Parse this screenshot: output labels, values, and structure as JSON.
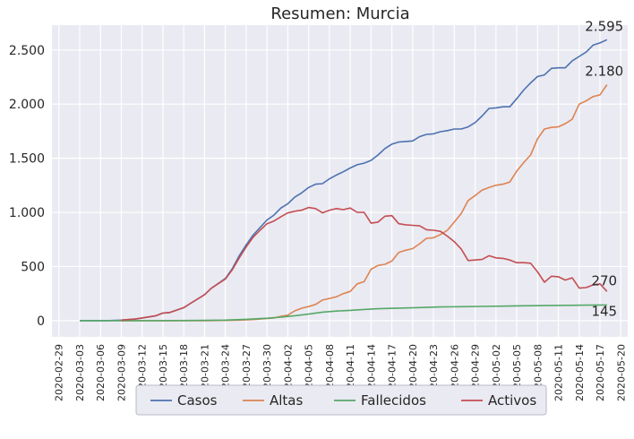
{
  "chart_data": {
    "type": "line",
    "title": "Resumen: Murcia",
    "xlabel": "",
    "ylabel": "",
    "xlim": [
      "2020-02-28",
      "2020-05-21"
    ],
    "ylim": [
      -150,
      2730
    ],
    "grid": true,
    "background": "#eaeaf2",
    "legend_position": "bottom-center",
    "y_ticks": [
      {
        "value": 0,
        "label": "0"
      },
      {
        "value": 500,
        "label": "500"
      },
      {
        "value": 1000,
        "label": "1.000"
      },
      {
        "value": 1500,
        "label": "1.500"
      },
      {
        "value": 2000,
        "label": "2.000"
      },
      {
        "value": 2500,
        "label": "2.500"
      }
    ],
    "x_ticks": [
      "2020-02-29",
      "2020-03-03",
      "2020-03-06",
      "2020-03-09",
      "2020-03-12",
      "2020-03-15",
      "2020-03-18",
      "2020-03-21",
      "2020-03-24",
      "2020-03-27",
      "2020-03-30",
      "2020-04-02",
      "2020-04-05",
      "2020-04-08",
      "2020-04-11",
      "2020-04-14",
      "2020-04-17",
      "2020-04-20",
      "2020-04-23",
      "2020-04-26",
      "2020-04-29",
      "2020-05-02",
      "2020-05-05",
      "2020-05-08",
      "2020-05-11",
      "2020-05-14",
      "2020-05-17",
      "2020-05-20"
    ],
    "series": [
      {
        "name": "Casos",
        "color": "#4c72b0",
        "points": [
          [
            "2020-03-03",
            0
          ],
          [
            "2020-03-07",
            0
          ],
          [
            "2020-03-09",
            5
          ],
          [
            "2020-03-11",
            15
          ],
          [
            "2020-03-12",
            25
          ],
          [
            "2020-03-14",
            45
          ],
          [
            "2020-03-15",
            70
          ],
          [
            "2020-03-16",
            75
          ],
          [
            "2020-03-18",
            120
          ],
          [
            "2020-03-19",
            160
          ],
          [
            "2020-03-21",
            240
          ],
          [
            "2020-03-22",
            300
          ],
          [
            "2020-03-24",
            390
          ],
          [
            "2020-03-25",
            480
          ],
          [
            "2020-03-26",
            600
          ],
          [
            "2020-03-27",
            700
          ],
          [
            "2020-03-28",
            790
          ],
          [
            "2020-03-29",
            860
          ],
          [
            "2020-03-30",
            930
          ],
          [
            "2020-03-31",
            975
          ],
          [
            "2020-04-01",
            1040
          ],
          [
            "2020-04-02",
            1080
          ],
          [
            "2020-04-03",
            1140
          ],
          [
            "2020-04-04",
            1180
          ],
          [
            "2020-04-05",
            1230
          ],
          [
            "2020-04-06",
            1260
          ],
          [
            "2020-04-07",
            1265
          ],
          [
            "2020-04-08",
            1310
          ],
          [
            "2020-04-09",
            1345
          ],
          [
            "2020-04-10",
            1375
          ],
          [
            "2020-04-11",
            1410
          ],
          [
            "2020-04-12",
            1440
          ],
          [
            "2020-04-13",
            1455
          ],
          [
            "2020-04-14",
            1480
          ],
          [
            "2020-04-15",
            1530
          ],
          [
            "2020-04-16",
            1590
          ],
          [
            "2020-04-17",
            1630
          ],
          [
            "2020-04-18",
            1650
          ],
          [
            "2020-04-19",
            1655
          ],
          [
            "2020-04-20",
            1660
          ],
          [
            "2020-04-21",
            1700
          ],
          [
            "2020-04-22",
            1720
          ],
          [
            "2020-04-23",
            1725
          ],
          [
            "2020-04-24",
            1745
          ],
          [
            "2020-04-25",
            1755
          ],
          [
            "2020-04-26",
            1770
          ],
          [
            "2020-04-27",
            1770
          ],
          [
            "2020-04-28",
            1790
          ],
          [
            "2020-04-29",
            1830
          ],
          [
            "2020-04-30",
            1890
          ],
          [
            "2020-05-01",
            1960
          ],
          [
            "2020-05-02",
            1965
          ],
          [
            "2020-05-03",
            1975
          ],
          [
            "2020-05-04",
            1975
          ],
          [
            "2020-05-05",
            2050
          ],
          [
            "2020-05-06",
            2130
          ],
          [
            "2020-05-07",
            2195
          ],
          [
            "2020-05-08",
            2255
          ],
          [
            "2020-05-09",
            2270
          ],
          [
            "2020-05-10",
            2330
          ],
          [
            "2020-05-11",
            2335
          ],
          [
            "2020-05-12",
            2335
          ],
          [
            "2020-05-13",
            2400
          ],
          [
            "2020-05-14",
            2440
          ],
          [
            "2020-05-15",
            2480
          ],
          [
            "2020-05-16",
            2545
          ],
          [
            "2020-05-17",
            2565
          ],
          [
            "2020-05-18",
            2595
          ]
        ]
      },
      {
        "name": "Altas",
        "color": "#dd8452",
        "points": [
          [
            "2020-03-09",
            0
          ],
          [
            "2020-03-14",
            0
          ],
          [
            "2020-03-18",
            0
          ],
          [
            "2020-03-21",
            0
          ],
          [
            "2020-03-24",
            2
          ],
          [
            "2020-03-26",
            5
          ],
          [
            "2020-03-28",
            10
          ],
          [
            "2020-03-30",
            20
          ],
          [
            "2020-03-31",
            25
          ],
          [
            "2020-04-01",
            40
          ],
          [
            "2020-04-02",
            50
          ],
          [
            "2020-04-03",
            90
          ],
          [
            "2020-04-04",
            115
          ],
          [
            "2020-04-05",
            130
          ],
          [
            "2020-04-06",
            150
          ],
          [
            "2020-04-07",
            190
          ],
          [
            "2020-04-08",
            205
          ],
          [
            "2020-04-09",
            220
          ],
          [
            "2020-04-10",
            250
          ],
          [
            "2020-04-11",
            270
          ],
          [
            "2020-04-12",
            340
          ],
          [
            "2020-04-13",
            360
          ],
          [
            "2020-04-14",
            475
          ],
          [
            "2020-04-15",
            510
          ],
          [
            "2020-04-16",
            520
          ],
          [
            "2020-04-17",
            550
          ],
          [
            "2020-04-18",
            630
          ],
          [
            "2020-04-19",
            650
          ],
          [
            "2020-04-20",
            665
          ],
          [
            "2020-04-21",
            710
          ],
          [
            "2020-04-22",
            760
          ],
          [
            "2020-04-23",
            765
          ],
          [
            "2020-04-24",
            795
          ],
          [
            "2020-04-25",
            835
          ],
          [
            "2020-04-26",
            910
          ],
          [
            "2020-04-27",
            990
          ],
          [
            "2020-04-28",
            1110
          ],
          [
            "2020-04-29",
            1155
          ],
          [
            "2020-04-30",
            1205
          ],
          [
            "2020-05-01",
            1230
          ],
          [
            "2020-05-02",
            1250
          ],
          [
            "2020-05-03",
            1260
          ],
          [
            "2020-05-04",
            1280
          ],
          [
            "2020-05-05",
            1380
          ],
          [
            "2020-05-06",
            1460
          ],
          [
            "2020-05-07",
            1530
          ],
          [
            "2020-05-08",
            1680
          ],
          [
            "2020-05-09",
            1770
          ],
          [
            "2020-05-10",
            1785
          ],
          [
            "2020-05-11",
            1790
          ],
          [
            "2020-05-12",
            1820
          ],
          [
            "2020-05-13",
            1860
          ],
          [
            "2020-05-14",
            2000
          ],
          [
            "2020-05-15",
            2030
          ],
          [
            "2020-05-16",
            2070
          ],
          [
            "2020-05-17",
            2085
          ],
          [
            "2020-05-18",
            2180
          ]
        ]
      },
      {
        "name": "Fallecidos",
        "color": "#55a868",
        "points": [
          [
            "2020-03-03",
            0
          ],
          [
            "2020-03-09",
            0
          ],
          [
            "2020-03-15",
            0
          ],
          [
            "2020-03-21",
            2
          ],
          [
            "2020-03-24",
            5
          ],
          [
            "2020-03-27",
            12
          ],
          [
            "2020-03-30",
            22
          ],
          [
            "2020-04-01",
            32
          ],
          [
            "2020-04-03",
            45
          ],
          [
            "2020-04-05",
            60
          ],
          [
            "2020-04-07",
            78
          ],
          [
            "2020-04-09",
            88
          ],
          [
            "2020-04-11",
            95
          ],
          [
            "2020-04-13",
            103
          ],
          [
            "2020-04-15",
            110
          ],
          [
            "2020-04-18",
            116
          ],
          [
            "2020-04-21",
            121
          ],
          [
            "2020-04-24",
            126
          ],
          [
            "2020-04-27",
            129
          ],
          [
            "2020-04-30",
            131
          ],
          [
            "2020-05-03",
            134
          ],
          [
            "2020-05-06",
            137
          ],
          [
            "2020-05-09",
            139
          ],
          [
            "2020-05-12",
            141
          ],
          [
            "2020-05-15",
            143
          ],
          [
            "2020-05-18",
            145
          ]
        ]
      },
      {
        "name": "Activos",
        "color": "#c44e52",
        "points": [
          [
            "2020-03-09",
            5
          ],
          [
            "2020-03-11",
            15
          ],
          [
            "2020-03-12",
            25
          ],
          [
            "2020-03-14",
            45
          ],
          [
            "2020-03-15",
            70
          ],
          [
            "2020-03-16",
            75
          ],
          [
            "2020-03-18",
            120
          ],
          [
            "2020-03-19",
            160
          ],
          [
            "2020-03-21",
            240
          ],
          [
            "2020-03-22",
            300
          ],
          [
            "2020-03-24",
            385
          ],
          [
            "2020-03-25",
            470
          ],
          [
            "2020-03-26",
            580
          ],
          [
            "2020-03-27",
            680
          ],
          [
            "2020-03-28",
            770
          ],
          [
            "2020-03-29",
            835
          ],
          [
            "2020-03-30",
            895
          ],
          [
            "2020-03-31",
            920
          ],
          [
            "2020-04-01",
            960
          ],
          [
            "2020-04-02",
            995
          ],
          [
            "2020-04-03",
            1010
          ],
          [
            "2020-04-04",
            1020
          ],
          [
            "2020-04-05",
            1045
          ],
          [
            "2020-04-06",
            1035
          ],
          [
            "2020-04-07",
            995
          ],
          [
            "2020-04-08",
            1020
          ],
          [
            "2020-04-09",
            1035
          ],
          [
            "2020-04-10",
            1025
          ],
          [
            "2020-04-11",
            1040
          ],
          [
            "2020-04-12",
            1000
          ],
          [
            "2020-04-13",
            1000
          ],
          [
            "2020-04-14",
            900
          ],
          [
            "2020-04-15",
            910
          ],
          [
            "2020-04-16",
            965
          ],
          [
            "2020-04-17",
            970
          ],
          [
            "2020-04-18",
            895
          ],
          [
            "2020-04-19",
            885
          ],
          [
            "2020-04-20",
            880
          ],
          [
            "2020-04-21",
            875
          ],
          [
            "2020-04-22",
            840
          ],
          [
            "2020-04-23",
            835
          ],
          [
            "2020-04-24",
            825
          ],
          [
            "2020-04-25",
            780
          ],
          [
            "2020-04-26",
            730
          ],
          [
            "2020-04-27",
            660
          ],
          [
            "2020-04-28",
            555
          ],
          [
            "2020-04-29",
            560
          ],
          [
            "2020-04-30",
            565
          ],
          [
            "2020-05-01",
            600
          ],
          [
            "2020-05-02",
            580
          ],
          [
            "2020-05-03",
            575
          ],
          [
            "2020-05-04",
            560
          ],
          [
            "2020-05-05",
            535
          ],
          [
            "2020-05-06",
            535
          ],
          [
            "2020-05-07",
            530
          ],
          [
            "2020-05-08",
            450
          ],
          [
            "2020-05-09",
            355
          ],
          [
            "2020-05-10",
            410
          ],
          [
            "2020-05-11",
            405
          ],
          [
            "2020-05-12",
            375
          ],
          [
            "2020-05-13",
            395
          ],
          [
            "2020-05-14",
            300
          ],
          [
            "2020-05-15",
            305
          ],
          [
            "2020-05-16",
            330
          ],
          [
            "2020-05-17",
            340
          ],
          [
            "2020-05-18",
            270
          ]
        ]
      }
    ],
    "annotations": [
      {
        "text": "2.595",
        "x": "2020-05-18",
        "y": 2595
      },
      {
        "text": "2.180",
        "x": "2020-05-18",
        "y": 2180
      },
      {
        "text": "270",
        "x": "2020-05-18",
        "y": 270
      },
      {
        "text": "145",
        "x": "2020-05-18",
        "y": 145
      }
    ]
  }
}
